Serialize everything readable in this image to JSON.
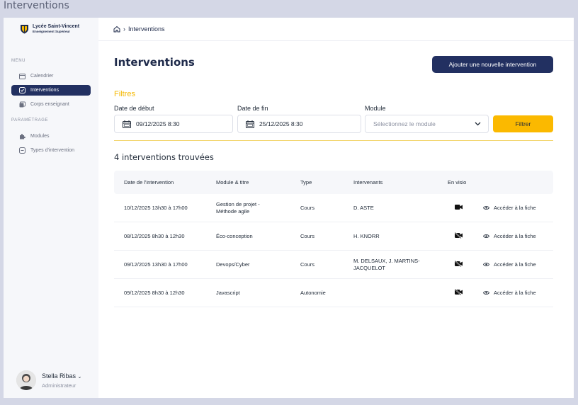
{
  "window": {
    "title": "Interventions"
  },
  "sidebar": {
    "logo": {
      "name": "Lycée Saint-Vincent",
      "sub": "Enseignement Supérieur"
    },
    "menu_label": "MENU",
    "menu_items": [
      {
        "label": "Calendrier",
        "icon": "calendar-icon"
      },
      {
        "label": "Interventions",
        "icon": "check-square-icon",
        "active": true
      },
      {
        "label": "Corps enseignant",
        "icon": "id-card-icon"
      }
    ],
    "settings_label": "PARAMÉTRAGE",
    "settings_items": [
      {
        "label": "Modules",
        "icon": "puzzle-icon"
      },
      {
        "label": "Types d'intervention",
        "icon": "minus-square-icon"
      }
    ],
    "user": {
      "name": "Stella Ribas",
      "role": "Administrateur"
    }
  },
  "breadcrumb": {
    "current": "Interventions"
  },
  "page": {
    "title": "Interventions",
    "add_button": "Ajouter une nouvelle intervention"
  },
  "filters": {
    "title": "Filtres",
    "start": {
      "label": "Date de début",
      "value": "09/12/2025 8:30"
    },
    "end": {
      "label": "Date de fin",
      "value": "25/12/2025 8:30"
    },
    "module": {
      "label": "Module",
      "placeholder": "Sélectionnez le module"
    },
    "button": "Filtrer"
  },
  "results": {
    "count_label": "4 interventions trouvées"
  },
  "table": {
    "headers": [
      "Date de l'intervention",
      "Module & titre",
      "Type",
      "Intervenants",
      "En visio"
    ],
    "action_label": "Accéder à la fiche",
    "rows": [
      {
        "date": "10/12/2025 13h30 à 17h00",
        "module": "Gestion de projet - Méthode agile",
        "type": "Cours",
        "speakers": "D. ASTE",
        "visio": true
      },
      {
        "date": "08/12/2025 8h30 à 12h30",
        "module": "Éco-conception",
        "type": "Cours",
        "speakers": "H. KNORR",
        "visio": false
      },
      {
        "date": "09/12/2025 13h30 à 17h00",
        "module": "Devops/Cyber",
        "type": "Cours",
        "speakers": "M. DELSAUX, J. MARTINS-JACQUELOT",
        "visio": false
      },
      {
        "date": "09/12/2025 8h30 à 12h30",
        "module": "Javascript",
        "type": "Autonomie",
        "speakers": "",
        "visio": false
      }
    ]
  },
  "colors": {
    "primary": "#223061",
    "accent": "#fbb900"
  }
}
